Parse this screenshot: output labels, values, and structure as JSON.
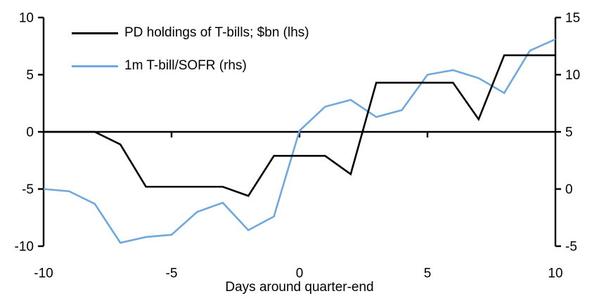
{
  "chart_data": {
    "type": "line",
    "title": "",
    "xlabel": "Days around quarter-end",
    "grid": false,
    "legend_position": "top-left",
    "x": [
      -10,
      -9,
      -8,
      -7,
      -6,
      -5,
      -4,
      -3,
      -2,
      -1,
      0,
      1,
      2,
      3,
      4,
      5,
      6,
      7,
      8,
      9,
      10
    ],
    "x_ticks": [
      -10,
      -5,
      0,
      5,
      10
    ],
    "left_axis": {
      "min": -10,
      "max": 10,
      "ticks": [
        10,
        5,
        0,
        -5,
        -10
      ]
    },
    "right_axis": {
      "min": -5,
      "max": 15,
      "ticks": [
        15,
        10,
        5,
        0,
        -5
      ]
    },
    "series": [
      {
        "name": "PD holdings of T-bills; $bn (lhs)",
        "axis": "left",
        "color": "#000000",
        "values": [
          0,
          0,
          0,
          -1.1,
          -4.8,
          -4.8,
          -4.8,
          -4.8,
          -5.6,
          -2.1,
          -2.1,
          -2.1,
          -3.7,
          4.3,
          4.3,
          4.3,
          4.3,
          1.1,
          6.7,
          6.7,
          6.7
        ]
      },
      {
        "name": "1m T-bill/SOFR (rhs)",
        "axis": "right",
        "color": "#6FA8DC",
        "values": [
          0.0,
          -0.2,
          -1.3,
          -4.7,
          -4.2,
          -4.0,
          -2.0,
          -1.2,
          -3.6,
          -2.4,
          5.1,
          7.2,
          7.8,
          6.3,
          6.9,
          10.0,
          10.4,
          9.7,
          8.4,
          12.1,
          13.1
        ]
      }
    ],
    "axis_color": "#000000",
    "tick_label_color": "#000000"
  }
}
